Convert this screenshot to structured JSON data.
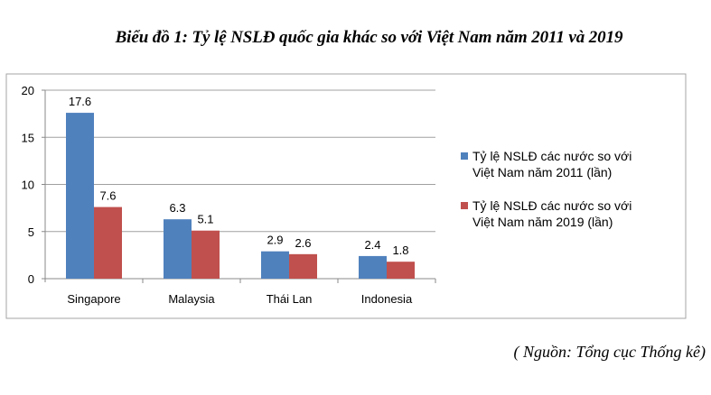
{
  "chart_data": {
    "type": "bar",
    "title": "Biểu đồ 1: Tỷ lệ NSLĐ  quốc gia khác so với Việt Nam năm 2011 và 2019",
    "xlabel": "",
    "ylabel": "",
    "ylim": [
      0,
      20
    ],
    "yticks": [
      "0",
      "5",
      "10",
      "15",
      "20"
    ],
    "grid": true,
    "legend_position": "right",
    "categories": [
      "Singapore",
      "Malaysia",
      "Thái Lan",
      "Indonesia"
    ],
    "series": [
      {
        "name": "Tỷ lệ NSLĐ các nước so với Việt Nam năm 2011 (lần)",
        "legend_lines": [
          "Tỷ lệ NSLĐ các nước so với",
          "Việt Nam năm 2011 (lần)"
        ],
        "color": "#4F81BD",
        "values": [
          17.6,
          6.3,
          2.9,
          2.4
        ],
        "labels": [
          "17.6",
          "6.3",
          "2.9",
          "2.4"
        ]
      },
      {
        "name": "Tỷ lệ NSLĐ các nước so với Việt Nam năm 2019 (lần)",
        "legend_lines": [
          "Tỷ lệ NSLĐ các nước so với",
          "Việt Nam năm 2019 (lần)"
        ],
        "color": "#C0504D",
        "values": [
          7.6,
          5.1,
          2.6,
          1.8
        ],
        "labels": [
          "7.6",
          "5.1",
          "2.6",
          "1.8"
        ]
      }
    ]
  },
  "source": "( Nguồn: Tổng cục Thống kê)"
}
